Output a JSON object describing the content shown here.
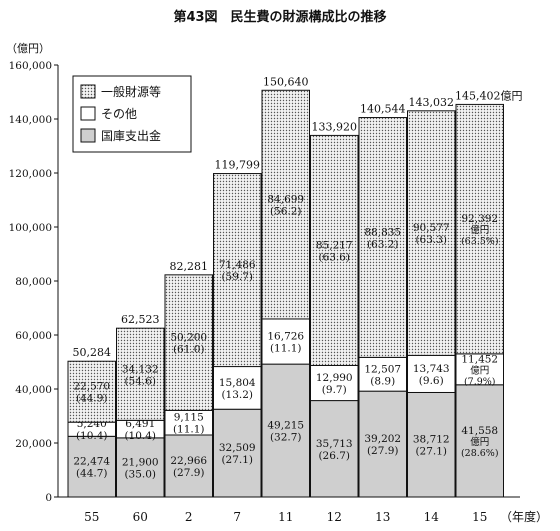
{
  "chart_data": {
    "type": "bar",
    "stacked": true,
    "title": "第43図　民生費の財源構成比の推移",
    "y_unit": "（億円）",
    "x_unit": "（年度）",
    "ylim": [
      0,
      160000
    ],
    "y_ticks": [
      "0",
      "20,000",
      "40,000",
      "60,000",
      "80,000",
      "100,000",
      "120,000",
      "140,000",
      "160,000"
    ],
    "y_tick_values": [
      0,
      20000,
      40000,
      60000,
      80000,
      100000,
      120000,
      140000,
      160000
    ],
    "grid": false,
    "legend_position": "top-left",
    "categories": [
      "55",
      "60",
      "2",
      "7",
      "11",
      "12",
      "13",
      "14",
      "15"
    ],
    "series": [
      {
        "name": "国庫支出金",
        "color": "#cfcfcf",
        "pattern": "solid",
        "values": [
          22474,
          21900,
          22966,
          32509,
          49215,
          35713,
          39202,
          38712,
          41558
        ],
        "labels": [
          [
            "22,474",
            "(44.7)"
          ],
          [
            "21,900",
            "(35.0)"
          ],
          [
            "22,966",
            "(27.9)"
          ],
          [
            "32,509",
            "(27.1)"
          ],
          [
            "49,215",
            "(32.7)"
          ],
          [
            "35,713",
            "(26.7)"
          ],
          [
            "39,202",
            "(27.9)"
          ],
          [
            "38,712",
            "(27.1)"
          ],
          [
            "41,558",
            "億円",
            "(28.6%)"
          ]
        ]
      },
      {
        "name": "その他",
        "color": "#ffffff",
        "pattern": "solid",
        "values": [
          5240,
          6491,
          9115,
          15804,
          16726,
          12990,
          12507,
          13743,
          11452
        ],
        "labels": [
          [
            "5,240",
            "(10.4)"
          ],
          [
            "6,491",
            "(10.4)"
          ],
          [
            "9,115",
            "(11.1)"
          ],
          [
            "15,804",
            "(13.2)"
          ],
          [
            "16,726",
            "(11.1)"
          ],
          [
            "12,990",
            "(9.7)"
          ],
          [
            "12,507",
            "(8.9)"
          ],
          [
            "13,743",
            "(9.6)"
          ],
          [
            "11,452",
            "億円",
            "(7.9%)"
          ]
        ]
      },
      {
        "name": "一般財源等",
        "color": "#e6e6e6",
        "pattern": "dots",
        "values": [
          22570,
          34132,
          50200,
          71486,
          84699,
          85217,
          88835,
          90577,
          92392
        ],
        "labels": [
          [
            "22,570",
            "(44.9)"
          ],
          [
            "34,132",
            "(54.6)"
          ],
          [
            "50,200",
            "(61.0)"
          ],
          [
            "71,486",
            "(59.7)"
          ],
          [
            "84,699",
            "(56.2)"
          ],
          [
            "85,217",
            "(63.6)"
          ],
          [
            "88,835",
            "(63.2)"
          ],
          [
            "90,577",
            "(63.3)"
          ],
          [
            "92,392",
            "億円",
            "(63.5%)"
          ]
        ]
      }
    ],
    "totals": [
      50284,
      62523,
      82281,
      119799,
      150640,
      133920,
      140544,
      143032,
      145402
    ],
    "total_labels": [
      "50,284",
      "62,523",
      "82,281",
      "119,799",
      "150,640",
      "133,920",
      "140,544",
      "143,032",
      "145,402億円"
    ],
    "legend_order": [
      "一般財源等",
      "その他",
      "国庫支出金"
    ]
  }
}
